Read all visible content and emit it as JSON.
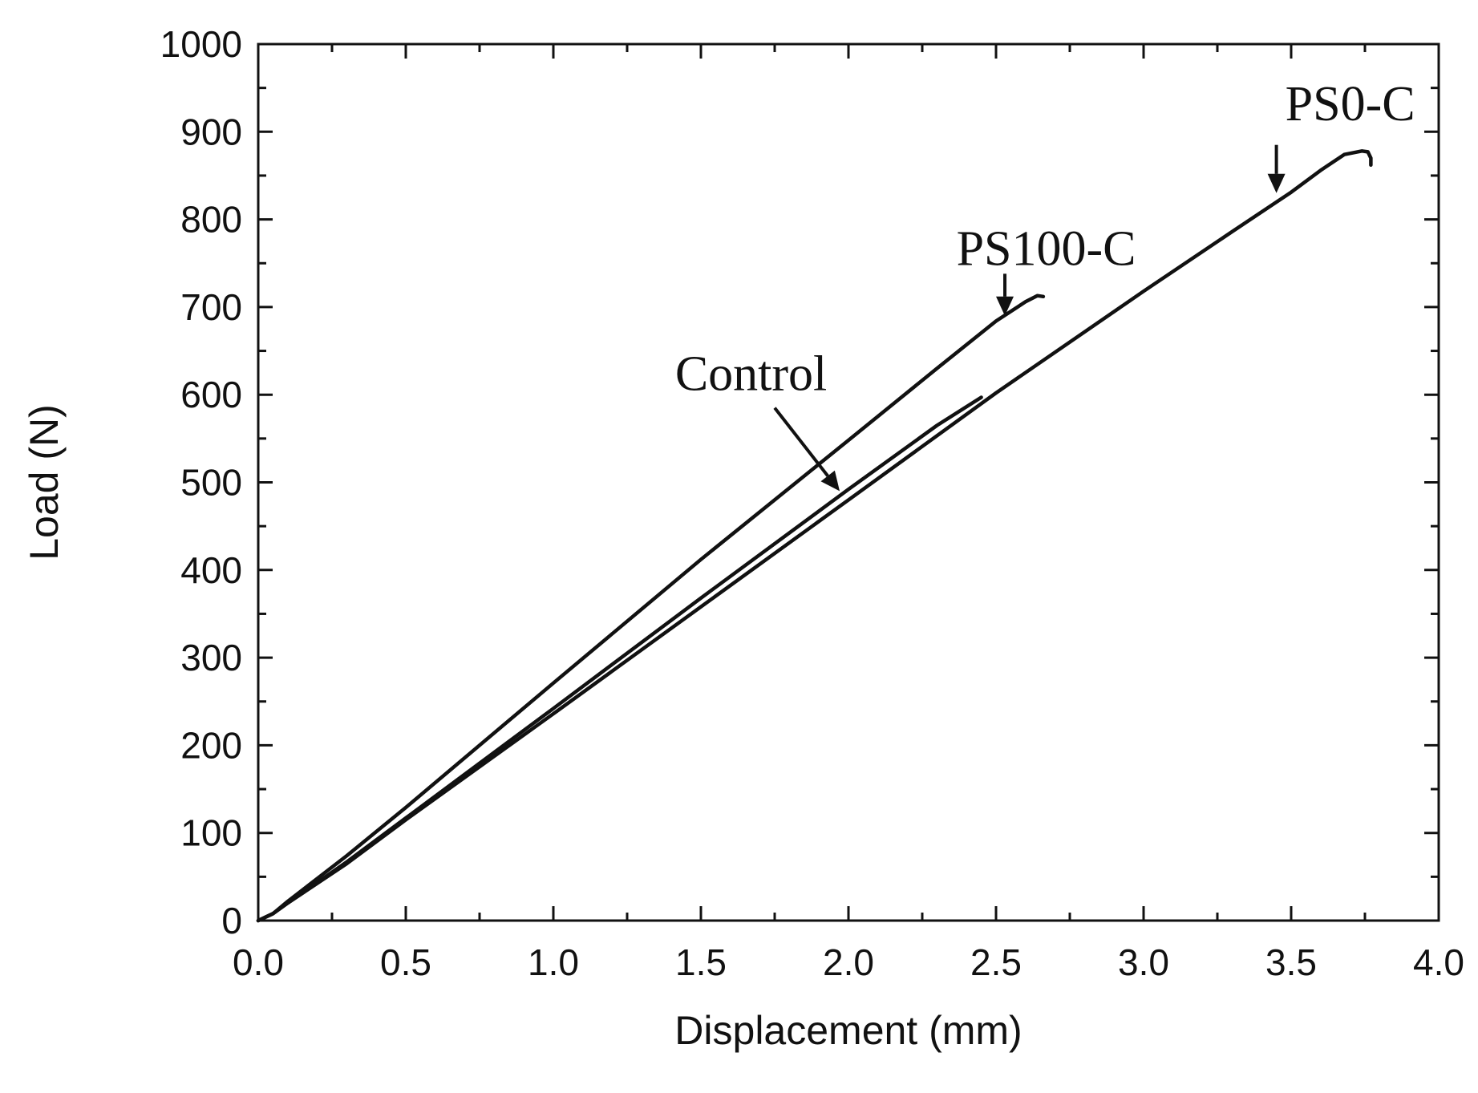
{
  "chart_data": {
    "type": "line",
    "title": "",
    "xlabel": "Displacement (mm)",
    "ylabel": "Load (N)",
    "xlim": [
      0.0,
      4.0
    ],
    "ylim": [
      0,
      1000
    ],
    "xticks": [
      0.0,
      0.5,
      1.0,
      1.5,
      2.0,
      2.5,
      3.0,
      3.5,
      4.0
    ],
    "xtick_labels": [
      "0.0",
      "0.5",
      "1.0",
      "1.5",
      "2.0",
      "2.5",
      "3.0",
      "3.5",
      "4.0"
    ],
    "yticks": [
      0,
      100,
      200,
      300,
      400,
      500,
      600,
      700,
      800,
      900,
      1000
    ],
    "ytick_labels": [
      "0",
      "100",
      "200",
      "300",
      "400",
      "500",
      "600",
      "700",
      "800",
      "900",
      "1000"
    ],
    "grid": false,
    "legend": "none",
    "series": [
      {
        "name": "PS0-C",
        "x": [
          0.0,
          0.05,
          0.1,
          0.3,
          0.5,
          1.0,
          1.5,
          2.0,
          2.5,
          3.0,
          3.3,
          3.5,
          3.6,
          3.68,
          3.74,
          3.76,
          3.77,
          3.77
        ],
        "y": [
          0,
          8,
          20,
          65,
          115,
          236,
          358,
          480,
          602,
          718,
          786,
          831,
          856,
          874,
          878,
          877,
          870,
          862
        ]
      },
      {
        "name": "PS100-C",
        "x": [
          0.0,
          0.05,
          0.1,
          0.3,
          0.5,
          1.0,
          1.5,
          2.0,
          2.3,
          2.5,
          2.6,
          2.64,
          2.66
        ],
        "y": [
          0,
          8,
          22,
          74,
          129,
          271,
          412,
          548,
          630,
          684,
          706,
          713,
          712
        ]
      },
      {
        "name": "Control",
        "x": [
          0.0,
          0.05,
          0.1,
          0.3,
          0.5,
          1.0,
          1.5,
          2.0,
          2.3,
          2.45
        ],
        "y": [
          0,
          8,
          20,
          67,
          117,
          242,
          368,
          492,
          565,
          597
        ]
      }
    ],
    "annotations": [
      {
        "text": "PS0-C",
        "label_at": [
          3.7,
          913
        ],
        "arrow_from": [
          3.45,
          885
        ],
        "arrow_to": [
          3.45,
          830
        ]
      },
      {
        "text": "PS100-C",
        "label_at": [
          2.67,
          748
        ],
        "arrow_from": [
          2.53,
          738
        ],
        "arrow_to": [
          2.53,
          690
        ]
      },
      {
        "text": "Control",
        "label_at": [
          1.67,
          605
        ],
        "arrow_from": [
          1.75,
          585
        ],
        "arrow_to": [
          1.97,
          490
        ]
      }
    ]
  }
}
